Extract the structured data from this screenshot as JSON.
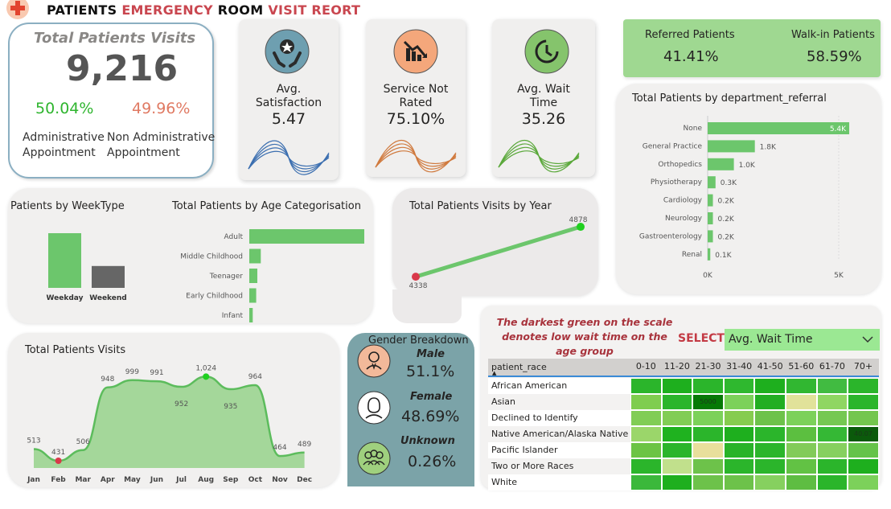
{
  "header": {
    "title_part1": "PATIENTS",
    "title_part2": "EMERGENCY",
    "title_part3": "ROOM",
    "title_part4": "VISIT REORT"
  },
  "total_visits": {
    "title": "Total Patients Visits",
    "value": "9,216",
    "admin_pct": "50.04%",
    "nonadmin_pct": "49.96%",
    "admin_label_1": "Administrative",
    "admin_label_2": "Appointment",
    "nonadmin_label_1": "Non Administrative",
    "nonadmin_label_2": "Appointment"
  },
  "kpis": [
    {
      "label_1": "Avg.",
      "label_2": "Satisfaction",
      "value": "5.47",
      "icon": "satisfaction-hands-star-icon",
      "color": "#6e9fb0"
    },
    {
      "label_1": "Service Not",
      "label_2": "Rated",
      "value": "75.10%",
      "icon": "declining-chart-icon",
      "color": "#f4a77b"
    },
    {
      "label_1": "Avg. Wait",
      "label_2": "Time",
      "value": "35.26",
      "icon": "clock-icon",
      "color": "#85c46c"
    }
  ],
  "referral": {
    "referred_label": "Referred Patients",
    "referred_value": "41.41%",
    "walkin_label": "Walk-in Patients",
    "walkin_value": "58.59%"
  },
  "dept_chart": {
    "title": "Total Patients by department_referral",
    "axis_min": "0K",
    "axis_max": "5K",
    "max": 5000,
    "categories": [
      "None",
      "General Practice",
      "Orthopedics",
      "Physiotherapy",
      "Cardiology",
      "Neurology",
      "Gastroenterology",
      "Renal"
    ],
    "values": [
      5400,
      1800,
      1000,
      300,
      200,
      200,
      200,
      100
    ],
    "labels": [
      "5.4K",
      "1.8K",
      "1.0K",
      "0.3K",
      "0.2K",
      "0.2K",
      "0.2K",
      "0.1K"
    ]
  },
  "weektype": {
    "title": "Patients by WeekType",
    "categories": [
      "Weekday",
      "Weekend"
    ],
    "values": [
      1.0,
      0.4
    ],
    "colors": [
      "#6cc66c",
      "#666666"
    ]
  },
  "age_chart": {
    "title": "Total Patients by Age Categorisation",
    "categories": [
      "Adult",
      "Middle Childhood",
      "Teenager",
      "Early Childhood",
      "Infant"
    ],
    "values": [
      1.0,
      0.1,
      0.07,
      0.06,
      0.03
    ]
  },
  "year_chart": {
    "title": "Total Patients Visits by Year",
    "values": [
      4338,
      4878
    ],
    "labels": [
      "4338",
      "4878"
    ]
  },
  "monthly": {
    "title": "Total Patients Visits",
    "months": [
      "Jan",
      "Feb",
      "Mar",
      "Apr",
      "May",
      "Jun",
      "Jul",
      "Aug",
      "Sep",
      "Oct",
      "Nov",
      "Dec"
    ],
    "values": [
      513,
      431,
      506,
      948,
      999,
      991,
      952,
      1024,
      935,
      964,
      464,
      489
    ],
    "labels": [
      "513",
      "431",
      "506",
      "948",
      "999",
      "991",
      "952",
      "1,024",
      "935",
      "964",
      "464",
      "489"
    ]
  },
  "gender": {
    "title": "Gender Breakdown",
    "male_label": "Male",
    "male_value": "51.1%",
    "female_label": "Female",
    "female_value": "48.69%",
    "unknown_label": "Unknown",
    "unknown_value": "0.26%"
  },
  "heatmap": {
    "note_1": "The darkest green on the scale",
    "note_2": "denotes low wait time on the",
    "note_3": "age group",
    "select_label": "SELECT",
    "select_value": "Avg. Wait Time",
    "row_header": "patient_race",
    "columns": [
      "0-10",
      "11-20",
      "21-30",
      "31-40",
      "41-50",
      "51-60",
      "61-70",
      "70+"
    ],
    "rows": [
      "African American",
      "Asian",
      "Declined to Identify",
      "Native American/Alaska Native",
      "Pacific Islander",
      "Two or More Races",
      "White"
    ],
    "colors": [
      [
        "#2bb52b",
        "#1eaf1e",
        "#2bb52b",
        "#2fb82f",
        "#1eaf1e",
        "#31b731",
        "#41bb41",
        "#2bb52b"
      ],
      [
        "#7fcd4f",
        "#2bb52b",
        "#067906",
        "#7cd15a",
        "#22ae22",
        "#e1e29a",
        "#8fd662",
        "#2bb52b"
      ],
      [
        "#81cd55",
        "#81cd55",
        "#7cd15a",
        "#86cc4f",
        "#6dc24a",
        "#7cd15a",
        "#75c852",
        "#74c64e"
      ],
      [
        "#9bd66a",
        "#1fb21f",
        "#2bb52b",
        "#1eaf1e",
        "#2bb52b",
        "#5cbf40",
        "#35b835",
        "#0b5a0b"
      ],
      [
        "#6cc445",
        "#2bb52b",
        "#e8df9c",
        "#28b328",
        "#2bb52b",
        "#82cb59",
        "#86d05f",
        "#65c34a"
      ],
      [
        "#2bb52b",
        "#c1e08c",
        "#6dc24a",
        "#2bb52b",
        "#2bb52b",
        "#62c244",
        "#2bb52b",
        "#1eaf1e"
      ],
      [
        "#3bb83b",
        "#1eaf1e",
        "#6dc24a",
        "#6dc24a",
        "#86d05f",
        "#5ebd42",
        "#2bb52b",
        "#7cd15a"
      ]
    ],
    "cell_labels": {
      "1-2": "5000",
      "3-7": "40.07"
    }
  }
}
